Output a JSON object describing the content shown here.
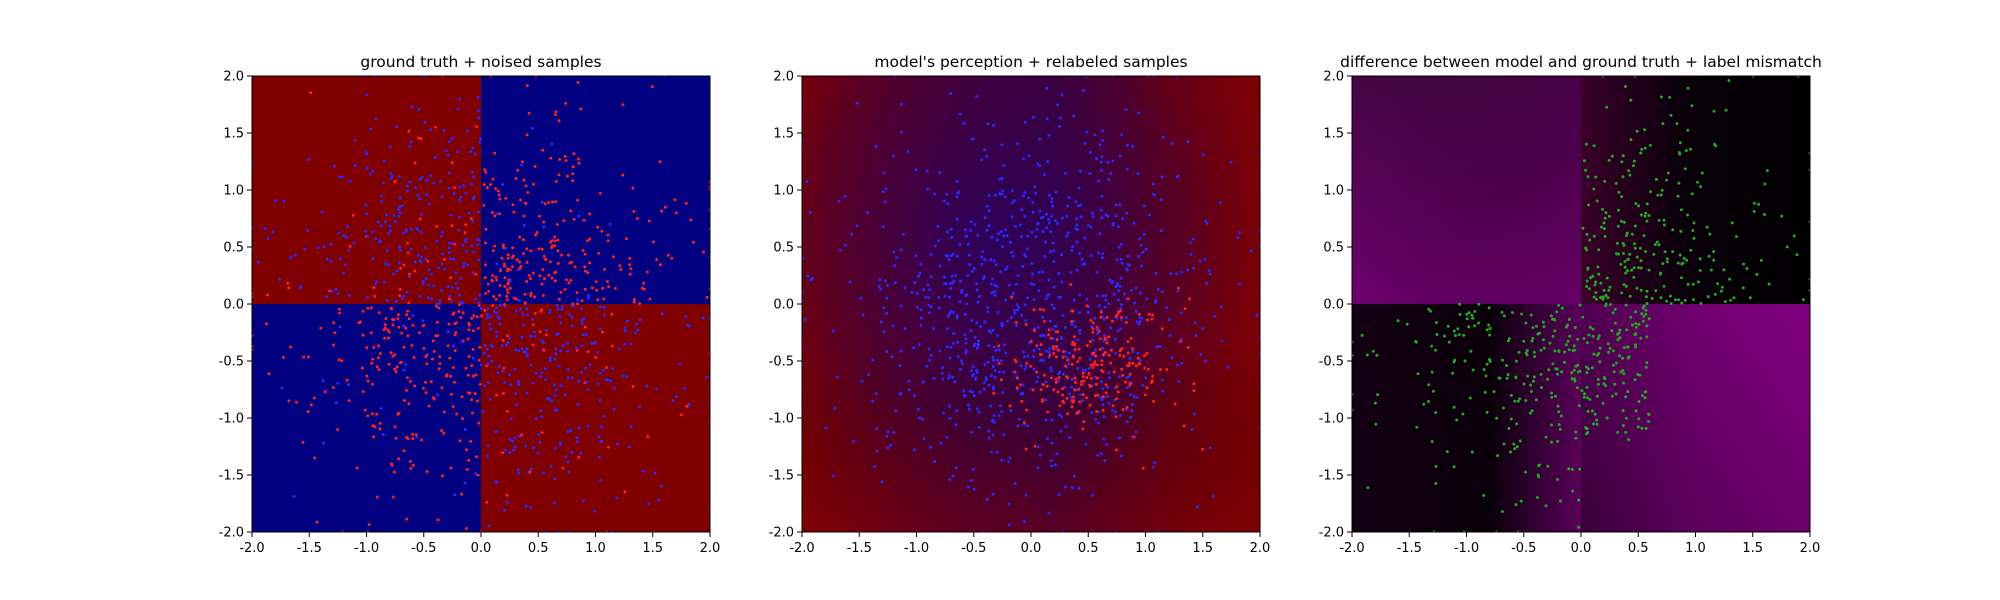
{
  "figure": {
    "background": "#ffffff"
  },
  "chart_data": [
    {
      "type": "scatter",
      "title": "ground truth + noised samples",
      "xlabel": "",
      "ylabel": "",
      "xlim": [
        -2.0,
        2.0
      ],
      "ylim": [
        -2.0,
        2.0
      ],
      "xticks": [
        "-2.0",
        "-1.5",
        "-1.0",
        "-0.5",
        "0.0",
        "0.5",
        "1.0",
        "1.5",
        "2.0"
      ],
      "yticks": [
        "-2.0",
        "-1.5",
        "-1.0",
        "-0.5",
        "0.0",
        "0.5",
        "1.0",
        "1.5",
        "2.0"
      ],
      "grid": false,
      "background": {
        "kind": "quadrants",
        "quadrant_colors": {
          "top_left": "#800000",
          "top_right": "#000080",
          "bottom_left": "#000080",
          "bottom_right": "#800000"
        }
      },
      "series": [
        {
          "color": "#ff2020",
          "region": "mixed",
          "approx_count": 550
        },
        {
          "color": "#2a2aff",
          "region": "mixed",
          "approx_count": 550
        }
      ]
    },
    {
      "type": "scatter",
      "title": "model's perception + relabeled samples",
      "xlabel": "",
      "ylabel": "",
      "xlim": [
        -2.0,
        2.0
      ],
      "ylim": [
        -2.0,
        2.0
      ],
      "xticks": [
        "-2.0",
        "-1.5",
        "-1.0",
        "-0.5",
        "0.0",
        "0.5",
        "1.0",
        "1.5",
        "2.0"
      ],
      "yticks": [
        "-2.0",
        "-1.5",
        "-1.0",
        "-0.5",
        "0.0",
        "0.5",
        "1.0",
        "1.5",
        "2.0"
      ],
      "grid": false,
      "background": {
        "kind": "gradient",
        "colors": [
          "#800000",
          "#3a0040",
          "#5a0020"
        ]
      },
      "series": [
        {
          "color": "#2a2aff",
          "region": "center",
          "approx_count": 900
        },
        {
          "color": "#ff2020",
          "region": "lower-right-center",
          "approx_count": 250
        }
      ]
    },
    {
      "type": "scatter",
      "title": "difference between model and ground truth + label mismatch",
      "xlabel": "",
      "ylabel": "",
      "xlim": [
        -2.0,
        2.0
      ],
      "ylim": [
        -2.0,
        2.0
      ],
      "xticks": [
        "-2.0",
        "-1.5",
        "-1.0",
        "-0.5",
        "0.0",
        "0.5",
        "1.0",
        "1.5",
        "2.0"
      ],
      "yticks": [
        "-2.0",
        "-1.5",
        "-1.0",
        "-0.5",
        "0.0",
        "0.5",
        "1.0",
        "1.5",
        "2.0"
      ],
      "grid": false,
      "background": {
        "kind": "quadrant-gradients",
        "colors": [
          "#000000",
          "#800080"
        ]
      },
      "series": [
        {
          "color": "#1faa1f",
          "region": "top-right + bottom-left",
          "approx_count": 520
        }
      ]
    }
  ]
}
